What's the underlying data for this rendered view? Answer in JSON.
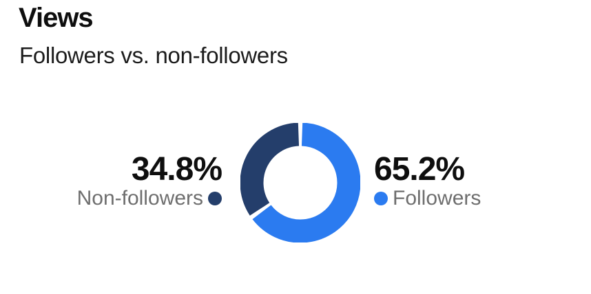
{
  "header": {
    "title": "Views",
    "subtitle": "Followers vs. non-followers"
  },
  "chart_data": {
    "type": "pie",
    "variant": "donut",
    "title": "Views",
    "subtitle": "Followers vs. non-followers",
    "start_angle_deg": -90,
    "direction": "clockwise",
    "legend_position": "sides",
    "slices": [
      {
        "label": "Followers",
        "value_pct": 65.2,
        "display": "65.2%",
        "color": "#2B7BF0"
      },
      {
        "label": "Non-followers",
        "value_pct": 34.8,
        "display": "34.8%",
        "color": "#243E6B"
      }
    ]
  },
  "colors": {
    "followers_blue": "#2B7BF0",
    "non_followers_navy": "#243E6B",
    "percent_text": "#0E0E0E",
    "label_text": "#6E6E6E",
    "background": "#FFFFFF"
  }
}
